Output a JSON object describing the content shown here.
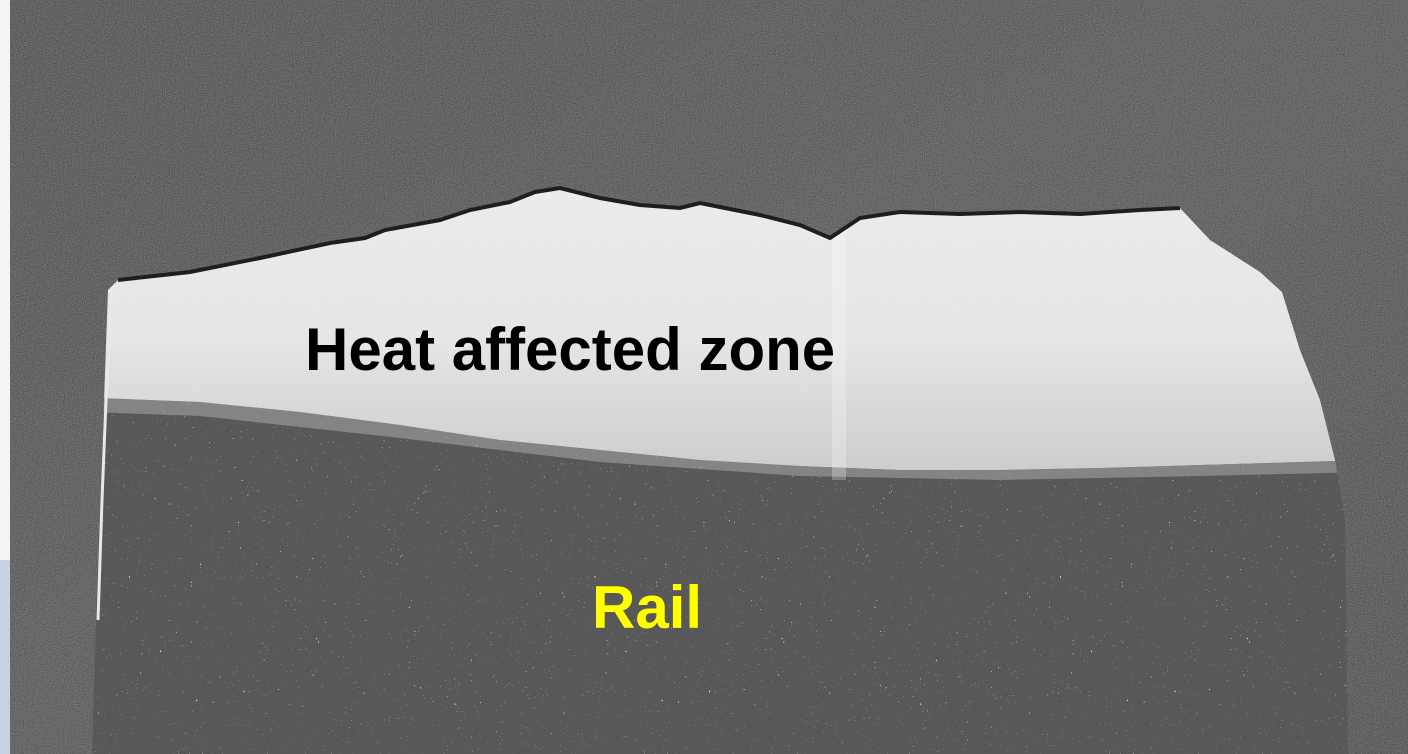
{
  "labels": {
    "heat_affected_zone": "Heat affected zone",
    "rail": "Rail"
  },
  "colors": {
    "heat_affected_zone_label": "#000000",
    "rail_label": "#ffff00",
    "mount_background": "#454545",
    "haz_region": "#eaeaea",
    "rail_region": "#5a5a5a"
  }
}
